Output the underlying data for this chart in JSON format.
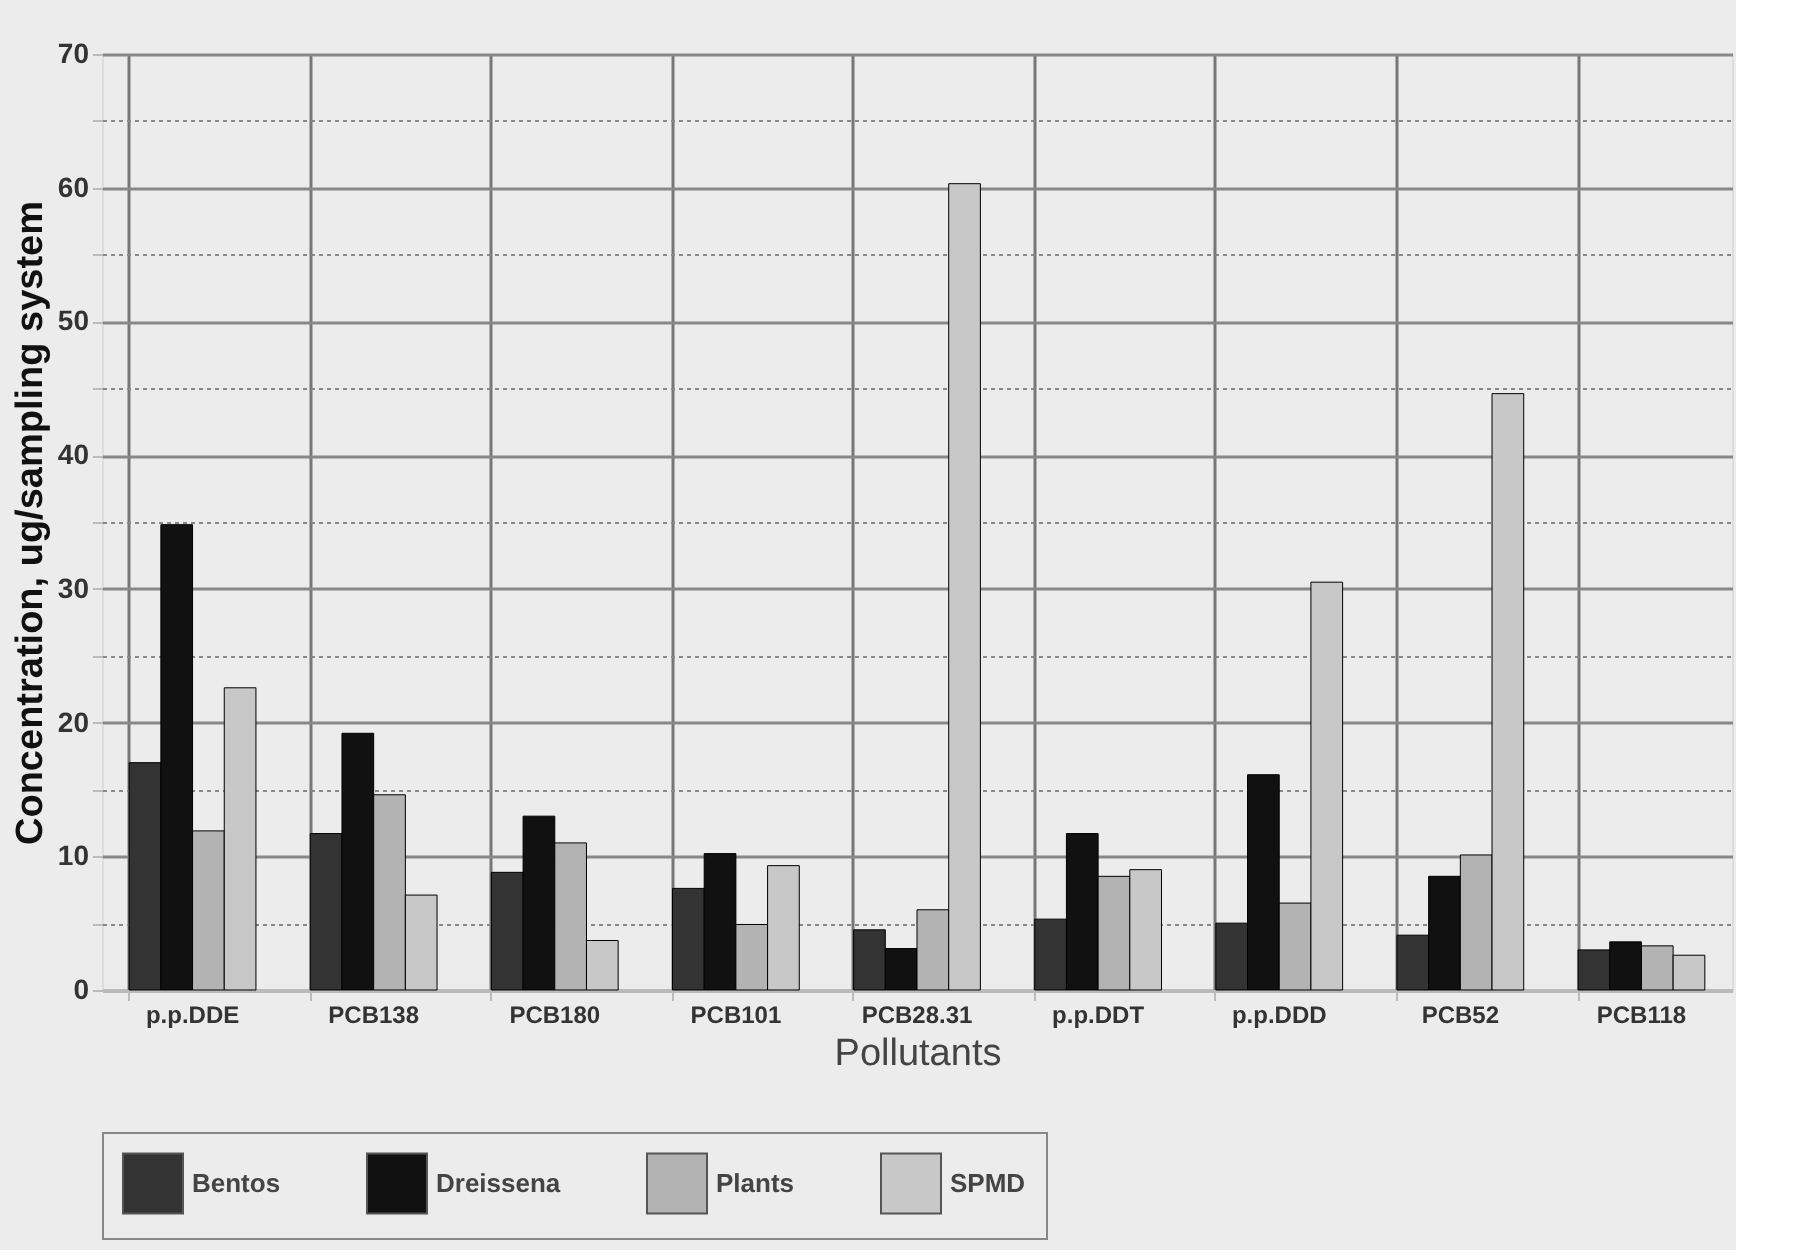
{
  "chart_data": {
    "type": "bar",
    "xlabel": "Pollutants",
    "ylabel": "Concentration, ug/sampling system",
    "categories": [
      "p.p.DDE",
      "PCB138",
      "PCB180",
      "PCB101",
      "PCB28.31",
      "p.p.DDT",
      "p.p.DDD",
      "PCB52",
      "PCB118"
    ],
    "series": [
      {
        "name": "Bentos",
        "color": "#333333",
        "values": [
          17.0,
          11.7,
          8.8,
          7.6,
          4.5,
          5.3,
          5.0,
          4.1,
          3.0
        ]
      },
      {
        "name": "Dreissena",
        "color": "#111111",
        "values": [
          34.8,
          19.2,
          13.0,
          10.2,
          3.1,
          11.7,
          16.1,
          8.5,
          3.6
        ]
      },
      {
        "name": "Plants",
        "color": "#b3b3b3",
        "values": [
          11.9,
          14.6,
          11.0,
          4.9,
          6.0,
          8.5,
          6.5,
          10.1,
          3.3
        ]
      },
      {
        "name": "SPMD",
        "color": "#c8c8c8",
        "values": [
          22.6,
          7.1,
          3.7,
          9.3,
          60.3,
          9.0,
          30.5,
          44.6,
          2.6
        ]
      }
    ],
    "ylim": [
      0,
      70
    ],
    "yticks": [
      0,
      {
        "value": 5,
        "label": null
      },
      10,
      {
        "value": 15,
        "label": null
      },
      20,
      {
        "value": 25,
        "label": null
      },
      30,
      {
        "value": 35,
        "label": null
      },
      40,
      {
        "value": 45,
        "label": null
      },
      50,
      {
        "value": 55,
        "label": null
      },
      60,
      {
        "value": 65,
        "label": null
      },
      70
    ],
    "grid": true,
    "legend": "bottom"
  }
}
